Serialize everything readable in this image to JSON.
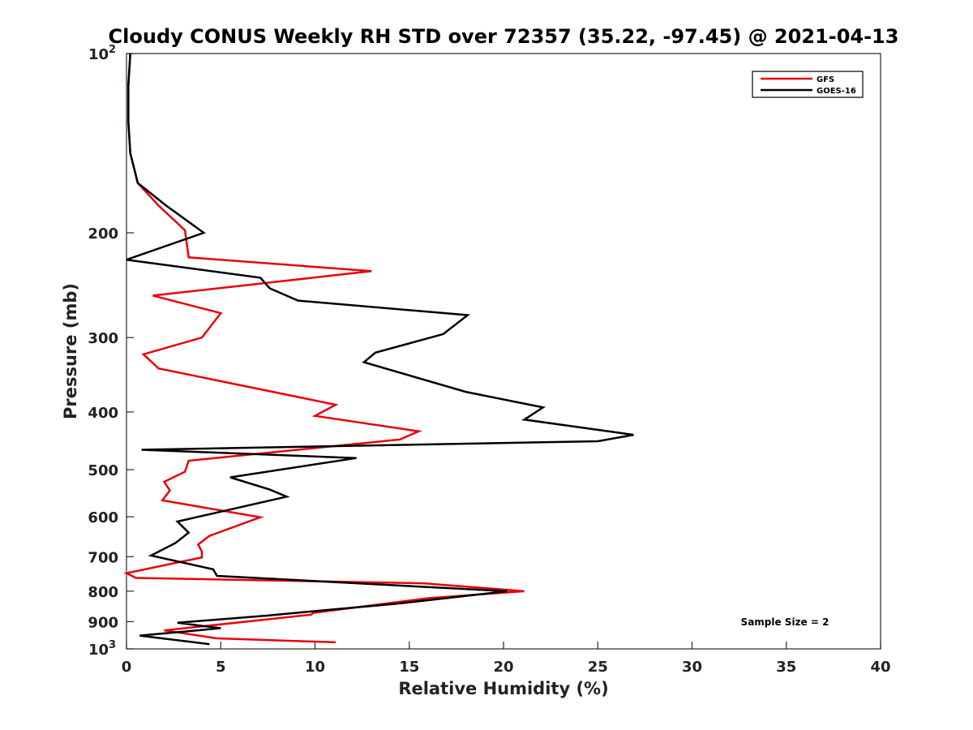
{
  "chart_data": {
    "type": "line",
    "title": "Cloudy CONUS Weekly RH STD over 72357 (35.22, -97.45) @ 2021-04-13",
    "xlabel": "Relative Humidity (%)",
    "ylabel": "Pressure (mb)",
    "xlim": [
      0,
      40
    ],
    "ylim": [
      100,
      1000
    ],
    "y_scale": "log",
    "y_reversed": true,
    "grid": false,
    "legend_position": "top-right",
    "x_ticks": [
      "0",
      "5",
      "10",
      "15",
      "20",
      "25",
      "30",
      "35",
      "40"
    ],
    "y_ticks": [
      {
        "value": 100,
        "base": "10",
        "exp": "2"
      },
      {
        "value": 200,
        "label": "200"
      },
      {
        "value": 300,
        "label": "300"
      },
      {
        "value": 400,
        "label": "400"
      },
      {
        "value": 500,
        "label": "500"
      },
      {
        "value": 600,
        "label": "600"
      },
      {
        "value": 700,
        "label": "700"
      },
      {
        "value": 800,
        "label": "800"
      },
      {
        "value": 900,
        "label": "900"
      },
      {
        "value": 1000,
        "base": "10",
        "exp": "3"
      }
    ],
    "annotation": "Sample Size = 2",
    "series": [
      {
        "name": "GFS",
        "color": "#e8000b",
        "x": [
          0.2,
          0.1,
          0.1,
          0.2,
          0.6,
          1.7,
          3.1,
          3.3,
          13.0,
          1.4,
          5.0,
          4.0,
          0.9,
          1.7,
          11.1,
          10.0,
          15.5,
          14.5,
          3.3,
          3.1,
          2.0,
          2.3,
          1.9,
          7.1,
          4.4,
          3.8,
          4.0,
          4.0,
          0.0,
          0.5,
          15.8,
          21.1,
          16.0,
          9.9,
          9.8,
          2.0,
          4.8,
          11.1
        ],
        "y": [
          100,
          113,
          130,
          147,
          165,
          180,
          198,
          220,
          232,
          255,
          273,
          300,
          320,
          338,
          389,
          406,
          431,
          445,
          483,
          504,
          524,
          542,
          563,
          601,
          646,
          668,
          686,
          702,
          746,
          760,
          776,
          800,
          822,
          870,
          876,
          931,
          960,
          975
        ]
      },
      {
        "name": "GOES-16",
        "color": "#000000",
        "x": [
          0.2,
          0.1,
          0.1,
          0.2,
          0.6,
          2.1,
          4.1,
          0.0,
          7.1,
          7.6,
          9.1,
          18.1,
          16.8,
          13.2,
          12.6,
          18.0,
          22.1,
          21.1,
          26.9,
          25.0,
          0.8,
          12.2,
          5.5,
          7.6,
          8.5,
          2.7,
          3.3,
          2.6,
          1.3,
          4.6,
          4.8,
          20.2,
          14.3,
          10.3,
          7.5,
          2.7,
          5.0,
          0.7,
          4.4
        ],
        "y": [
          100,
          113,
          130,
          147,
          165,
          180,
          200,
          222,
          238,
          248,
          260,
          275,
          296,
          318,
          330,
          370,
          393,
          412,
          437,
          448,
          463,
          478,
          515,
          540,
          555,
          611,
          638,
          664,
          697,
          735,
          754,
          800,
          840,
          862,
          879,
          904,
          923,
          950,
          982
        ]
      }
    ]
  }
}
